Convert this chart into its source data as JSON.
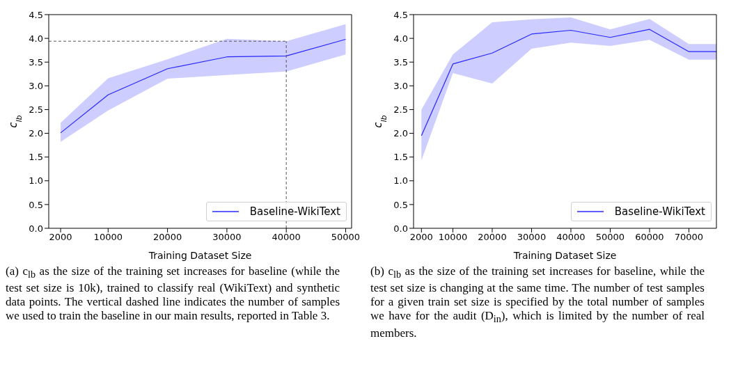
{
  "chart_data": [
    {
      "type": "line",
      "xlabel": "Training Dataset Size",
      "ylabel": "c$_{lb}$",
      "x": [
        2000,
        10000,
        20000,
        30000,
        40000,
        50000
      ],
      "xlim": [
        0,
        51000
      ],
      "xticks": [
        2000,
        10000,
        20000,
        30000,
        40000,
        50000
      ],
      "ylim": [
        0,
        4.5
      ],
      "yticks": [
        {
          "value": 0,
          "label": "0.0"
        },
        0.5,
        {
          "value": 1,
          "label": "1.0"
        },
        1.5,
        {
          "value": 2,
          "label": "2.0"
        },
        2.5,
        {
          "value": 3,
          "label": "3.0"
        },
        3.5,
        {
          "value": 4,
          "label": "4.0"
        },
        4.5
      ],
      "legend": "bottom right",
      "marker": "none",
      "line_style": "solid",
      "series": [
        {
          "name": "Baseline-WikiText",
          "color": "#2626ff",
          "values": [
            2.01,
            2.81,
            3.36,
            3.61,
            3.63,
            3.98
          ],
          "lower": [
            1.82,
            2.48,
            3.15,
            3.23,
            3.3,
            3.66
          ],
          "upper": [
            2.22,
            3.16,
            3.56,
            3.99,
            3.94,
            4.3
          ]
        }
      ],
      "ref_lines": [
        {
          "axis": "x",
          "value": 40000,
          "color": "#555555",
          "line_style": "dashed"
        },
        {
          "axis": "y",
          "value": 3.94,
          "color": "#555555",
          "line_style": "dashed"
        }
      ],
      "annotations": [
        "(a) c$_{lb}$ as the size of the training set increases for baseline (while the test set size is 10k), trained to classify real (WikiText) and synthetic data points. The vertical dashed line indicates the number of samples we used to train the baseline in our main results, reported in Table 3."
      ]
    },
    {
      "type": "line",
      "xlabel": "Training Dataset Size",
      "ylabel": "c$_{lb}$",
      "x": [
        2000,
        10000,
        20000,
        30000,
        40000,
        50000,
        60000,
        70000,
        77000
      ],
      "xlim": [
        0,
        77000
      ],
      "xticks": [
        2000,
        10000,
        20000,
        30000,
        40000,
        50000,
        60000,
        70000
      ],
      "ylim": [
        0,
        4.5
      ],
      "yticks": [
        {
          "value": 0,
          "label": "0.0"
        },
        0.5,
        {
          "value": 1,
          "label": "1.0"
        },
        1.5,
        {
          "value": 2,
          "label": "2.0"
        },
        2.5,
        {
          "value": 3,
          "label": "3.0"
        },
        3.5,
        {
          "value": 4,
          "label": "4.0"
        },
        4.5
      ],
      "legend": "bottom right",
      "marker": "none",
      "line_style": "solid",
      "series": [
        {
          "name": "Baseline-WikiText",
          "color": "#2626ff",
          "values": [
            1.95,
            3.46,
            3.69,
            4.09,
            4.17,
            4.02,
            4.19,
            3.72,
            3.72
          ],
          "lower": [
            1.43,
            3.27,
            3.05,
            3.78,
            3.91,
            3.84,
            3.97,
            3.55,
            3.55
          ],
          "upper": [
            2.5,
            3.66,
            4.34,
            4.4,
            4.44,
            4.19,
            4.41,
            3.88,
            3.88
          ]
        }
      ],
      "annotations": [
        "(b) c$_{lb}$ as the size of the training set increases for baseline, while the test set size is changing at the same time. The number of test samples for a given train set size is specified by the total number of samples we have for the audit (D$_{in}$), which is limited by the number of real members."
      ]
    }
  ]
}
